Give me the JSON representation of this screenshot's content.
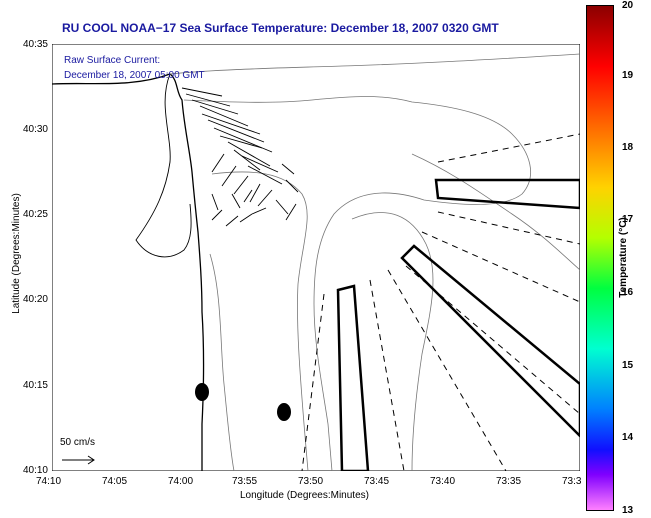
{
  "header": {
    "title": "RU COOL  NOAA−17  Sea Surface Temperature:  December 18, 2007 0320 GMT"
  },
  "overlay": {
    "current_label": "Raw Surface Current:",
    "current_time": "December 18, 2007 05:00 GMT",
    "scale_label": "50 cm/s"
  },
  "axes": {
    "xlabel": "Longitude (Degrees:Minutes)",
    "ylabel": "Latitude (Degrees:Minutes)",
    "x_ticks": [
      "74:10",
      "74:05",
      "74:00",
      "73:55",
      "73:50",
      "73:45",
      "73:40",
      "73:35",
      "73:3"
    ],
    "y_ticks": [
      "40:35",
      "40:30",
      "40:25",
      "40:20",
      "40:15",
      "40:10"
    ]
  },
  "colorbar": {
    "title": "Temperature (°C)",
    "ticks": [
      "20",
      "19",
      "18",
      "17",
      "16",
      "15",
      "14",
      "13"
    ],
    "range": [
      13,
      20
    ]
  },
  "colors": {
    "title_blue": "#1a1aa0",
    "colorbar_top": "#8b0000",
    "colorbar_bottom": "#ff80ff"
  }
}
